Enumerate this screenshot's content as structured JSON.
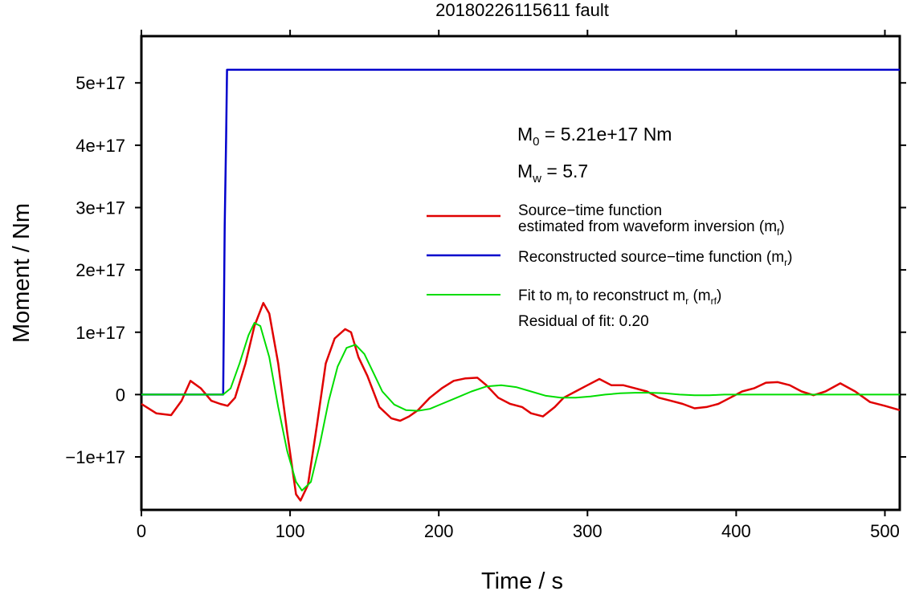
{
  "chart_data": {
    "type": "line",
    "title": "20180226115611 fault",
    "xlabel": "Time / s",
    "ylabel": "Moment / Nm",
    "xlim": [
      0,
      510
    ],
    "ylim": [
      -1.85e+17,
      5.75e+17
    ],
    "xticks": [
      0,
      100,
      200,
      300,
      400,
      500
    ],
    "xtick_labels": [
      "0",
      "100",
      "200",
      "300",
      "400",
      "500"
    ],
    "yticks": [
      -1e+17,
      0,
      1e+17,
      2e+17,
      3e+17,
      4e+17,
      5e+17
    ],
    "ytick_labels": [
      "−1e+17",
      "0",
      "1e+17",
      "2e+17",
      "3e+17",
      "4e+17",
      "5e+17"
    ],
    "grid": false,
    "legend_position": "right",
    "annotations": {
      "m0_main": "M",
      "m0_sub": "0",
      "m0_rest": " = 5.21e+17 Nm",
      "mw_main": "M",
      "mw_sub": "w",
      "mw_rest": " = 5.7",
      "residual": "Residual of fit: 0.20"
    },
    "legend": {
      "red_line1": "Source−time function",
      "red_line2": "estimated from waveform inversion (m",
      "red_line2_sub": "f",
      "red_line2_end": ")",
      "blue": "Reconstructed source−time function (m",
      "blue_sub": "r",
      "blue_end": ")",
      "green_a": "Fit to m",
      "green_sub1": "f",
      "green_b": " to reconstruct m",
      "green_sub2": "r",
      "green_c": " (m",
      "green_sub3": "rf",
      "green_d": ")"
    },
    "series": [
      {
        "color": "#e00000",
        "x": [
          0,
          10,
          20,
          27,
          33,
          40,
          47,
          53,
          58,
          63,
          70,
          76,
          82,
          86,
          92,
          98,
          104,
          107,
          112,
          118,
          124,
          130,
          137,
          141,
          146,
          152,
          160,
          168,
          174,
          180,
          186,
          194,
          202,
          210,
          218,
          226,
          232,
          240,
          248,
          256,
          262,
          270,
          278,
          284,
          292,
          300,
          308,
          316,
          324,
          332,
          340,
          348,
          356,
          364,
          372,
          380,
          388,
          396,
          404,
          412,
          420,
          428,
          436,
          444,
          452,
          460,
          470,
          480,
          490,
          500,
          510
        ],
        "y": [
          -1.5e+16,
          -3e+16,
          -3.3e+16,
          -1e+16,
          2.2e+16,
          1e+16,
          -1e+16,
          -1.5e+16,
          -1.8e+16,
          -5000000000000000.0,
          5e+16,
          1.1e+17,
          1.47e+17,
          1.3e+17,
          5e+16,
          -6e+16,
          -1.6e+17,
          -1.7e+17,
          -1.45e+17,
          -5e+16,
          5e+16,
          9e+16,
          1.05e+17,
          1e+17,
          6e+16,
          3e+16,
          -2e+16,
          -3.8e+16,
          -4.2e+16,
          -3.5e+16,
          -2.5e+16,
          -5000000000000000.0,
          1e+16,
          2.2e+16,
          2.6e+16,
          2.7e+16,
          1.5e+16,
          -5000000000000000.0,
          -1.5e+16,
          -2e+16,
          -3e+16,
          -3.5e+16,
          -2e+16,
          -5000000000000000.0,
          5000000000000000.0,
          1.5e+16,
          2.5e+16,
          1.5e+16,
          1.5e+16,
          1e+16,
          5000000000000000.0,
          -5000000000000000.0,
          -1e+16,
          -1.5e+16,
          -2.2e+16,
          -2e+16,
          -1.5e+16,
          -5000000000000000.0,
          5000000000000000.0,
          1e+16,
          1.9e+16,
          2e+16,
          1.5e+16,
          5000000000000000.0,
          -1000000000000000.0,
          5000000000000000.0,
          1.8e+16,
          5000000000000000.0,
          -1.2e+16,
          -1.8e+16,
          -2.5e+16
        ]
      },
      {
        "color": "#0000cc",
        "x": [
          0,
          55,
          56,
          57,
          57.6,
          510
        ],
        "y": [
          0,
          0,
          2.7e+17,
          4.14e+17,
          5.21e+17,
          5.21e+17
        ]
      },
      {
        "color": "#00dd00",
        "x": [
          0,
          55,
          60,
          66,
          72,
          76,
          80,
          86,
          92,
          98,
          104,
          108,
          114,
          120,
          126,
          132,
          138,
          144,
          150,
          156,
          162,
          170,
          178,
          186,
          194,
          202,
          212,
          222,
          232,
          242,
          252,
          262,
          272,
          282,
          292,
          302,
          312,
          322,
          332,
          342,
          352,
          362,
          372,
          382,
          392,
          410,
          430,
          450,
          470,
          490,
          510
        ],
        "y": [
          0,
          0,
          1e+16,
          5e+16,
          9.5e+16,
          1.15e+17,
          1.1e+17,
          6e+16,
          -2e+16,
          -9e+16,
          -1.4e+17,
          -1.54e+17,
          -1.4e+17,
          -8e+16,
          -1e+16,
          4.5e+16,
          7.5e+16,
          8e+16,
          6.5e+16,
          3.5e+16,
          5000000000000000.0,
          -1.6e+16,
          -2.5e+16,
          -2.6e+16,
          -2.3e+16,
          -1.5e+16,
          -5000000000000000.0,
          5000000000000000.0,
          1.3e+16,
          1.5e+16,
          1.2e+16,
          5000000000000000.0,
          -2000000000000000.0,
          -5000000000000000.0,
          -5000000000000000.0,
          -3000000000000000.0,
          0,
          2000000000000000.0,
          3000000000000000.0,
          3000000000000000.0,
          2000000000000000.0,
          0,
          -1000000000000000.0,
          -1000000000000000.0,
          0,
          0,
          0,
          0,
          0,
          0,
          0
        ]
      }
    ]
  }
}
